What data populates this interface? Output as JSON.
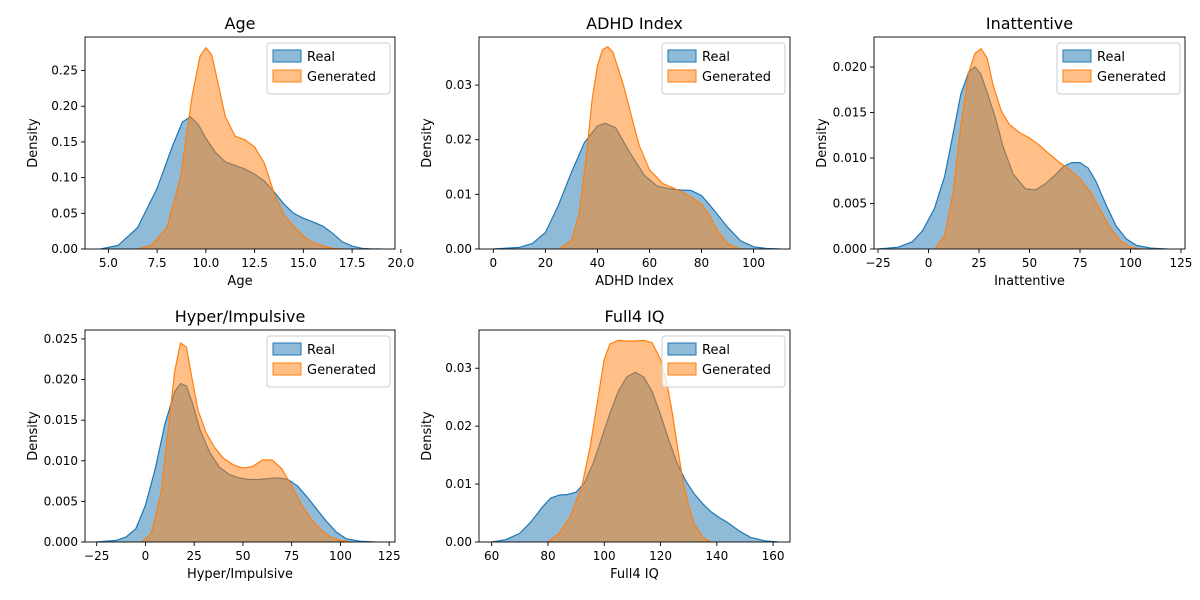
{
  "colors": {
    "real": "#1f77b4",
    "generated": "#ff7f0e"
  },
  "chart_data": [
    {
      "type": "area",
      "title": "Age",
      "xlabel": "Age",
      "ylabel": "Density",
      "xlim": [
        3.8,
        19.7
      ],
      "ylim": [
        0,
        0.297
      ],
      "xticks": [
        "5.0",
        "7.5",
        "10.0",
        "12.5",
        "15.0",
        "17.5",
        "20.0"
      ],
      "yticks": [
        "0.00",
        "0.05",
        "0.10",
        "0.15",
        "0.20",
        "0.25"
      ],
      "legend_position": "top-right",
      "series": [
        {
          "name": "Real",
          "key": "real",
          "x": [
            4.6,
            5.5,
            6.5,
            7.5,
            8.3,
            8.8,
            9.2,
            9.6,
            10,
            10.5,
            11,
            11.5,
            12,
            12.5,
            13,
            13.5,
            14,
            14.5,
            15,
            15.5,
            16,
            16.5,
            17,
            17.5,
            18,
            18.5,
            19
          ],
          "y": [
            0,
            0.005,
            0.03,
            0.085,
            0.145,
            0.178,
            0.185,
            0.175,
            0.155,
            0.135,
            0.122,
            0.117,
            0.112,
            0.105,
            0.095,
            0.08,
            0.063,
            0.05,
            0.043,
            0.038,
            0.032,
            0.022,
            0.01,
            0.004,
            0.001,
            0.0,
            0.0
          ]
        },
        {
          "name": "Generated",
          "key": "generated",
          "x": [
            6.5,
            7.2,
            8,
            8.7,
            9.3,
            9.7,
            10,
            10.3,
            10.6,
            11,
            11.5,
            12,
            12.5,
            13,
            13.5,
            14,
            14.5,
            15,
            15.5,
            16,
            16.5,
            17
          ],
          "y": [
            0,
            0.005,
            0.03,
            0.1,
            0.215,
            0.27,
            0.282,
            0.272,
            0.235,
            0.185,
            0.158,
            0.153,
            0.143,
            0.12,
            0.078,
            0.048,
            0.032,
            0.018,
            0.009,
            0.004,
            0.001,
            0.0
          ]
        }
      ]
    },
    {
      "type": "area",
      "title": "ADHD Index",
      "xlabel": "ADHD Index",
      "ylabel": "Density",
      "xlim": [
        -5.5,
        114
      ],
      "ylim": [
        0,
        0.0388
      ],
      "xticks": [
        "0",
        "20",
        "40",
        "60",
        "80",
        "100"
      ],
      "yticks": [
        "0.00",
        "0.01",
        "0.02",
        "0.03"
      ],
      "legend_position": "top-right",
      "series": [
        {
          "name": "Real",
          "key": "real",
          "x": [
            0,
            10,
            15,
            20,
            25,
            30,
            35,
            40,
            43,
            47,
            52,
            58,
            63,
            68,
            72,
            76,
            80,
            85,
            90,
            95,
            100,
            105,
            110
          ],
          "y": [
            0,
            0.0003,
            0.001,
            0.003,
            0.008,
            0.014,
            0.0195,
            0.0225,
            0.023,
            0.0222,
            0.018,
            0.0135,
            0.0115,
            0.011,
            0.0108,
            0.0107,
            0.0098,
            0.007,
            0.004,
            0.0015,
            0.0004,
            0.0001,
            0
          ]
        },
        {
          "name": "Generated",
          "key": "generated",
          "x": [
            25,
            30,
            33,
            36,
            38,
            40,
            42,
            44,
            46,
            48,
            50,
            53,
            56,
            60,
            65,
            70,
            75,
            80,
            83,
            86,
            90,
            95
          ],
          "y": [
            0,
            0.0015,
            0.0065,
            0.018,
            0.0275,
            0.0335,
            0.0365,
            0.037,
            0.036,
            0.033,
            0.03,
            0.0245,
            0.019,
            0.0145,
            0.012,
            0.011,
            0.0098,
            0.0082,
            0.0062,
            0.0035,
            0.001,
            0
          ]
        }
      ]
    },
    {
      "type": "area",
      "title": "Inattentive",
      "xlabel": "Inattentive",
      "ylabel": "Density",
      "xlim": [
        -27,
        127
      ],
      "ylim": [
        0,
        0.0233
      ],
      "xticks": [
        "−25",
        "0",
        "25",
        "50",
        "75",
        "100",
        "125"
      ],
      "yticks": [
        "0.000",
        "0.005",
        "0.010",
        "0.015",
        "0.020"
      ],
      "legend_position": "top-right",
      "series": [
        {
          "name": "Real",
          "key": "real",
          "x": [
            -25,
            -15,
            -8,
            -3,
            3,
            8,
            12,
            16,
            20,
            23,
            26,
            29,
            33,
            37,
            42,
            48,
            53,
            58,
            63,
            67,
            71,
            75,
            79,
            83,
            88,
            93,
            98,
            103,
            110,
            118
          ],
          "y": [
            0,
            0.0002,
            0.0008,
            0.002,
            0.0045,
            0.008,
            0.0125,
            0.017,
            0.0195,
            0.02,
            0.0192,
            0.0172,
            0.0145,
            0.0112,
            0.0082,
            0.0066,
            0.0065,
            0.0072,
            0.0082,
            0.0091,
            0.0095,
            0.0095,
            0.0089,
            0.0074,
            0.0048,
            0.0025,
            0.0011,
            0.0004,
            0.0001,
            0
          ]
        },
        {
          "name": "Generated",
          "key": "generated",
          "x": [
            3,
            8,
            12,
            16,
            20,
            23,
            26,
            29,
            32,
            36,
            40,
            45,
            50,
            55,
            60,
            65,
            70,
            75,
            80,
            85,
            90,
            95,
            100,
            105
          ],
          "y": [
            0,
            0.0015,
            0.006,
            0.0135,
            0.0195,
            0.0215,
            0.022,
            0.021,
            0.018,
            0.0152,
            0.0137,
            0.0128,
            0.0122,
            0.0114,
            0.0104,
            0.0095,
            0.0087,
            0.0077,
            0.0063,
            0.0043,
            0.0023,
            0.0009,
            0.0002,
            0
          ]
        }
      ]
    },
    {
      "type": "area",
      "title": "Hyper/Impulsive",
      "xlabel": "Hyper/Impulsive",
      "ylabel": "Density",
      "xlim": [
        -31,
        128
      ],
      "ylim": [
        0,
        0.0261
      ],
      "xticks": [
        "−25",
        "0",
        "25",
        "50",
        "75",
        "100",
        "125"
      ],
      "yticks": [
        "0.000",
        "0.005",
        "0.010",
        "0.015",
        "0.020",
        "0.025"
      ],
      "legend_position": "top-right",
      "series": [
        {
          "name": "Real",
          "key": "real",
          "x": [
            -25,
            -15,
            -10,
            -5,
            0,
            5,
            10,
            15,
            18,
            21,
            24,
            28,
            33,
            38,
            43,
            48,
            53,
            58,
            63,
            68,
            73,
            78,
            83,
            88,
            93,
            98,
            103,
            110,
            118
          ],
          "y": [
            0,
            0.0002,
            0.0006,
            0.0016,
            0.0045,
            0.009,
            0.0145,
            0.0185,
            0.0195,
            0.0192,
            0.0172,
            0.0138,
            0.011,
            0.0092,
            0.0083,
            0.0079,
            0.0077,
            0.0077,
            0.0078,
            0.0079,
            0.0077,
            0.0069,
            0.0055,
            0.004,
            0.0025,
            0.0012,
            0.0004,
            0.0001,
            0
          ]
        },
        {
          "name": "Generated",
          "key": "generated",
          "x": [
            -2,
            3,
            8,
            12,
            15,
            18,
            21,
            24,
            27,
            31,
            35,
            40,
            45,
            50,
            55,
            60,
            65,
            70,
            75,
            80,
            85,
            90,
            95,
            100,
            105
          ],
          "y": [
            0,
            0.001,
            0.006,
            0.0145,
            0.021,
            0.0245,
            0.024,
            0.02,
            0.0162,
            0.0135,
            0.0118,
            0.0103,
            0.0095,
            0.0091,
            0.0093,
            0.0101,
            0.0101,
            0.009,
            0.0069,
            0.0046,
            0.0028,
            0.0015,
            0.0006,
            0.0002,
            0
          ]
        }
      ]
    },
    {
      "type": "area",
      "title": "Full4 IQ",
      "xlabel": "Full4 IQ",
      "ylabel": "Density",
      "xlim": [
        55.5,
        166
      ],
      "ylim": [
        0,
        0.0366
      ],
      "xticks": [
        "60",
        "80",
        "100",
        "120",
        "140",
        "160"
      ],
      "yticks": [
        "0.00",
        "0.01",
        "0.02",
        "0.03"
      ],
      "legend_position": "top-right",
      "series": [
        {
          "name": "Real",
          "key": "real",
          "x": [
            60,
            65,
            70,
            74,
            78,
            81,
            84,
            87,
            90,
            93,
            96,
            99,
            102,
            105,
            108,
            111,
            114,
            117,
            120,
            123,
            126,
            129,
            132,
            135,
            138,
            141,
            144,
            148,
            152,
            157,
            162
          ],
          "y": [
            0,
            0.0004,
            0.0015,
            0.0035,
            0.006,
            0.0076,
            0.0081,
            0.0082,
            0.0086,
            0.0102,
            0.0135,
            0.0178,
            0.0222,
            0.026,
            0.0285,
            0.0293,
            0.0285,
            0.026,
            0.022,
            0.0175,
            0.0135,
            0.0105,
            0.0083,
            0.0066,
            0.0052,
            0.0042,
            0.0033,
            0.0019,
            0.0008,
            0.0002,
            0
          ]
        },
        {
          "name": "Generated",
          "key": "generated",
          "x": [
            80,
            84,
            88,
            92,
            95,
            98,
            100,
            102,
            105,
            108,
            111,
            114,
            117,
            120,
            122,
            124,
            126,
            128,
            130,
            132,
            135,
            138
          ],
          "y": [
            0,
            0.0015,
            0.0045,
            0.0095,
            0.0165,
            0.0255,
            0.0315,
            0.0342,
            0.0348,
            0.0347,
            0.0347,
            0.0348,
            0.0344,
            0.0315,
            0.028,
            0.0228,
            0.0165,
            0.0105,
            0.0062,
            0.0031,
            0.0008,
            0
          ]
        }
      ]
    }
  ]
}
